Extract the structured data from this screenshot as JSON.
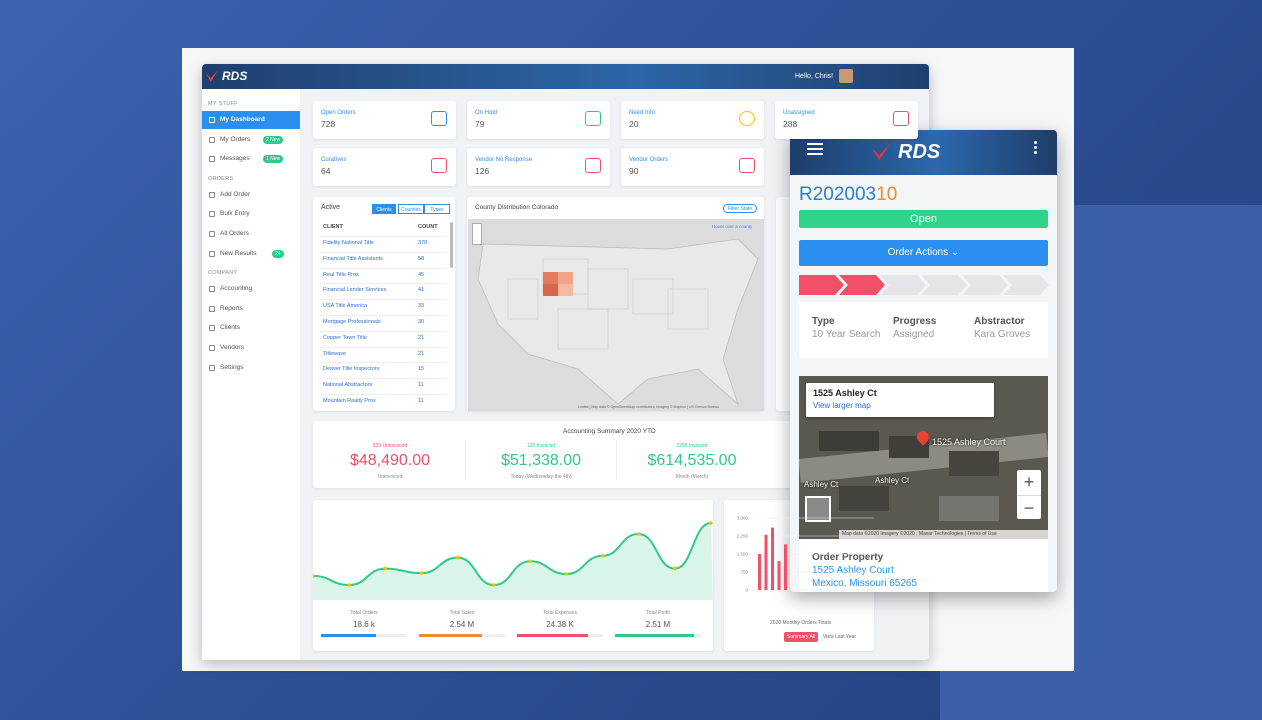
{
  "header": {
    "logo": "RDS",
    "greeting": "Hello, Chris!"
  },
  "sidebar": {
    "sections": [
      {
        "title": "MY STUFF",
        "items": [
          {
            "label": "My Dashboard"
          },
          {
            "label": "My Orders",
            "badge": "2 New"
          },
          {
            "label": "Messages",
            "badge": "1 New"
          }
        ]
      },
      {
        "title": "ORDERS",
        "items": [
          {
            "label": "Add Order"
          },
          {
            "label": "Bulk Entry"
          },
          {
            "label": "All Orders"
          },
          {
            "label": "New Results",
            "badge": "24"
          }
        ]
      },
      {
        "title": "COMPANY",
        "items": [
          {
            "label": "Accounting"
          },
          {
            "label": "Reports"
          },
          {
            "label": "Clients"
          },
          {
            "label": "Vendors"
          },
          {
            "label": "Settings"
          }
        ]
      }
    ]
  },
  "stats": [
    {
      "label": "Open Orders",
      "value": "728"
    },
    {
      "label": "On Hold",
      "value": "79"
    },
    {
      "label": "Need Info",
      "value": "20"
    },
    {
      "label": "Unassigned",
      "value": "288"
    },
    {
      "label": "Curatives",
      "value": "64"
    },
    {
      "label": "Vendor No Response",
      "value": "126"
    },
    {
      "label": "Vendor Orders",
      "value": "90"
    }
  ],
  "active_table": {
    "title": "Active",
    "tabs": [
      "Clients",
      "Counties",
      "Types"
    ],
    "columns": [
      "CLIENT",
      "COUNT"
    ],
    "rows": [
      [
        "Fidelity National Title",
        "378"
      ],
      [
        "Financial Title Assistants",
        "58"
      ],
      [
        "Real Title Pros",
        "45"
      ],
      [
        "Financial Lender Services",
        "41"
      ],
      [
        "USA Title America",
        "33"
      ],
      [
        "Mortgage Professionals",
        "30"
      ],
      [
        "Copper Town Title",
        "21"
      ],
      [
        "Titlewave",
        "21"
      ],
      [
        "Denver Title Inspectors",
        "15"
      ],
      [
        "National Abstractors",
        "11"
      ],
      [
        "Mountain Realty Pros",
        "11"
      ]
    ]
  },
  "map_card": {
    "title": "County Distribution Colorado",
    "button": "Filter State",
    "hint": "Hover over a county",
    "attribution": "Leaflet | Map data © OpenStreetMap contributors, Imagery © Mapbox | US Census Bureau"
  },
  "accounting": {
    "title": "Accounting Summary 2020 YTD",
    "items": [
      {
        "caption": "939 Uninvoiced",
        "amount": "$48,490.00",
        "sub": "Uninvoiced"
      },
      {
        "caption": "120 Invoiced",
        "amount": "$51,338.00",
        "sub": "Today (Wednesday the 4th)"
      },
      {
        "caption": "2296 Invoiced",
        "amount": "$614,535.00",
        "sub": "Month (March)"
      }
    ]
  },
  "line_chart": {
    "values": [
      30,
      20,
      38,
      33,
      50,
      20,
      46,
      32,
      52,
      76,
      38,
      88
    ],
    "stats": [
      {
        "label": "Total Orders",
        "value": "18.6 k"
      },
      {
        "label": "Total Sales",
        "value": "2.54 M"
      },
      {
        "label": "Total Expenses",
        "value": "24.38 K"
      },
      {
        "label": "Total Profit",
        "value": "2.51 M"
      }
    ]
  },
  "bar_chart": {
    "title": "2020 Monthly Orders Totals",
    "ylim": [
      0,
      3000
    ],
    "yticks": [
      {
        "value": 3000,
        "label": "3,000"
      },
      {
        "value": 2250,
        "label": "2,250"
      },
      {
        "value": 1500,
        "label": "1,500"
      },
      {
        "value": 750,
        "label": "750"
      },
      0
    ],
    "values": [
      1500,
      2300,
      2600,
      1200,
      1900
    ],
    "buttons": [
      "Summary All",
      "View Last Year"
    ]
  },
  "mobile": {
    "logo": "RDS",
    "order_id": "R202003",
    "order_id_suffix": "10",
    "status": "Open",
    "actions": "Order Actions",
    "details": [
      {
        "label": "Type",
        "value": "10 Year Search"
      },
      {
        "label": "Progress",
        "value": "Assigned"
      },
      {
        "label": "Abstractor",
        "value": "Kara Groves"
      }
    ],
    "map": {
      "popup_title": "1525 Ashley Ct",
      "popup_link": "View larger map",
      "marker_label": "1525 Ashley Court",
      "streets": [
        "Ashley Ct",
        "Ashley Ct"
      ],
      "attribution": "Map data ©2020 Imagery ©2020 , Maxar Technologies | Terms of Use",
      "zoom_in": "+",
      "zoom_out": "−"
    },
    "property": {
      "title": "Order Property",
      "street": "1525 Ashley Court",
      "city": "Mexico, Missouri 65265"
    }
  }
}
